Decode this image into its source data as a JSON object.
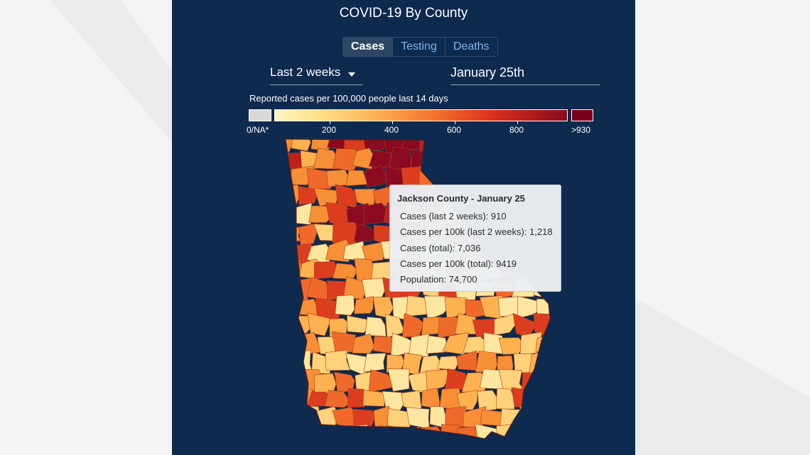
{
  "title": "COVID-19 By County",
  "tabs": [
    {
      "label": "Cases",
      "active": true
    },
    {
      "label": "Testing",
      "active": false
    },
    {
      "label": "Deaths",
      "active": false
    }
  ],
  "period": "Last 2 weeks",
  "date": "January 25th",
  "legend": {
    "title": "Reported cases per 100,000 people last 14 days",
    "na_label": "0/NA*",
    "ticks": [
      "200",
      "400",
      "600",
      "800"
    ],
    "max_label": ">930",
    "colors": {
      "na": "#d8d8d8",
      "low": "#fff5c0",
      "high": "#8b0a1f",
      "max": "#7a0019"
    }
  },
  "tooltip": {
    "title": "Jackson County - January 25",
    "rows": [
      "Cases (last 2 weeks): 910",
      "Cases per 100k (last 2 weeks): 1,218",
      "Cases (total): 7,036",
      "Cases per 100k (total): 9419",
      "Population: 74,700"
    ]
  },
  "theme": {
    "panel": "#0e2a4e",
    "tab_active": "#2d4664",
    "tab_text": "#7fb6ec"
  }
}
